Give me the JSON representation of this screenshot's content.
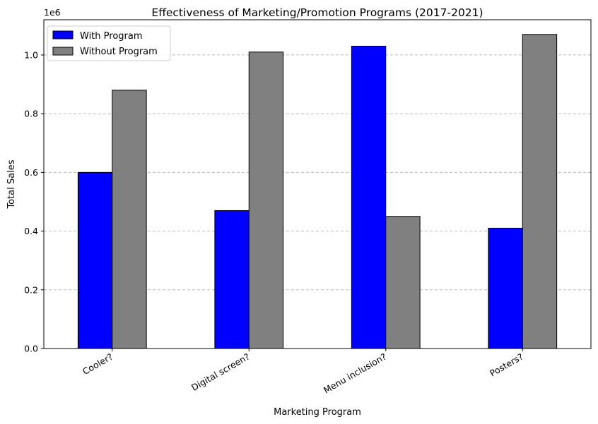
{
  "chart_data": {
    "type": "bar",
    "title": "Effectiveness of Marketing/Promotion Programs (2017-2021)",
    "xlabel": "Marketing Program",
    "ylabel": "Total Sales",
    "y_offset_label": "1e6",
    "categories": [
      "Cooler?",
      "Digital screen?",
      "Menu inclusion?",
      "Posters?"
    ],
    "series": [
      {
        "name": "With Program",
        "color": "#0000ff",
        "values": [
          600000,
          470000,
          1030000,
          410000
        ]
      },
      {
        "name": "Without Program",
        "color": "#808080",
        "values": [
          880000,
          1010000,
          450000,
          1070000
        ]
      }
    ],
    "ylim": [
      0,
      1120000
    ],
    "yticks": [
      0,
      200000,
      400000,
      600000,
      800000,
      1000000
    ],
    "ytick_labels": [
      "0.0",
      "0.2",
      "0.4",
      "0.6",
      "0.8",
      "1.0"
    ],
    "grid": "y-dashed",
    "legend_position": "top-left"
  }
}
